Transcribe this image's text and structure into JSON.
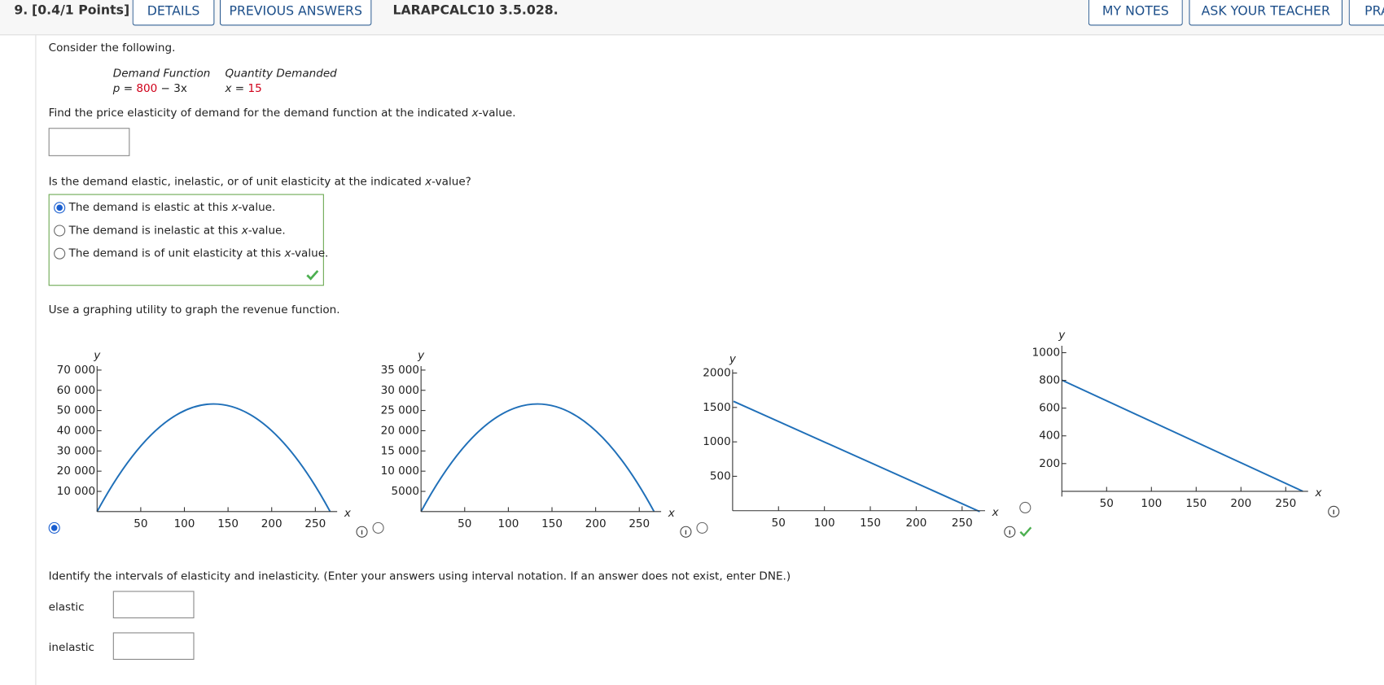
{
  "header": {
    "number": "9.",
    "points": "[0.4/1 Points]",
    "details": "DETAILS",
    "previous_answers": "PREVIOUS ANSWERS",
    "code": "LARAPCALC10 3.5.028.",
    "my_notes": "MY NOTES",
    "ask_teacher": "ASK YOUR TEACHER",
    "practice": "PRA"
  },
  "intro": "Consider the following.",
  "given": {
    "demand_label": "Demand Function",
    "quantity_label": "Quantity Demanded",
    "demand_lhs": "p = ",
    "demand_coef": "800",
    "demand_rest": " − 3x",
    "quantity_lhs": "x = ",
    "quantity_value": "15"
  },
  "part1": {
    "prompt": [
      "Find the price elasticity of demand for the demand function at the indicated ",
      "x",
      "-value."
    ]
  },
  "part2": {
    "prompt": [
      "Is the demand elastic, inelastic, or of unit elasticity at the indicated ",
      "x",
      "-value?"
    ],
    "options": [
      [
        "The demand is elastic at this ",
        "x",
        "-value."
      ],
      [
        "The demand is inelastic at this ",
        "x",
        "-value."
      ],
      [
        "The demand is of unit elasticity at this ",
        "x",
        "-value."
      ]
    ],
    "selected": 0
  },
  "part3": {
    "prompt": "Use a graphing utility to graph the revenue function.",
    "selected": 0,
    "graphs": [
      {
        "xlabel": "x",
        "ylabel": "y",
        "xlim": [
          0,
          275
        ],
        "ylim": [
          0,
          72000
        ],
        "xticks": [
          50,
          100,
          150,
          200,
          250
        ],
        "yticks": [
          {
            "value": 10000,
            "label": "10 000"
          },
          {
            "value": 20000,
            "label": "20 000"
          },
          {
            "value": 30000,
            "label": "30 000"
          },
          {
            "value": 40000,
            "label": "40 000"
          },
          {
            "value": 50000,
            "label": "50 000"
          },
          {
            "value": 60000,
            "label": "60 000"
          },
          {
            "value": 70000,
            "label": "70 000"
          }
        ]
      },
      {
        "xlabel": "x",
        "ylabel": "y",
        "xlim": [
          0,
          275
        ],
        "ylim": [
          0,
          36000
        ],
        "xticks": [
          50,
          100,
          150,
          200,
          250
        ],
        "yticks": [
          5000,
          {
            "value": 10000,
            "label": "10 000"
          },
          {
            "value": 15000,
            "label": "15 000"
          },
          {
            "value": 20000,
            "label": "20 000"
          },
          {
            "value": 25000,
            "label": "25 000"
          },
          {
            "value": 30000,
            "label": "30 000"
          },
          {
            "value": 35000,
            "label": "35 000"
          }
        ]
      },
      {
        "xlabel": "x",
        "ylabel": "y",
        "xlim": [
          0,
          275
        ],
        "ylim": [
          0,
          2050
        ],
        "xticks": [
          50,
          100,
          150,
          200,
          250
        ],
        "yticks": [
          500,
          1000,
          1500,
          2000
        ]
      },
      {
        "xlabel": "x",
        "ylabel": "y",
        "xlim": [
          0,
          275
        ],
        "ylim": [
          0,
          1050
        ],
        "xticks": [
          50,
          100,
          150,
          200,
          250
        ],
        "yticks": [
          200,
          400,
          600,
          800,
          1000
        ]
      }
    ]
  },
  "part4": {
    "prompt": "Identify the intervals of elasticity and inelasticity. (Enter your answers using interval notation. If an answer does not exist, enter DNE.)",
    "elastic_label": "elastic",
    "inelastic_label": "inelastic"
  }
}
